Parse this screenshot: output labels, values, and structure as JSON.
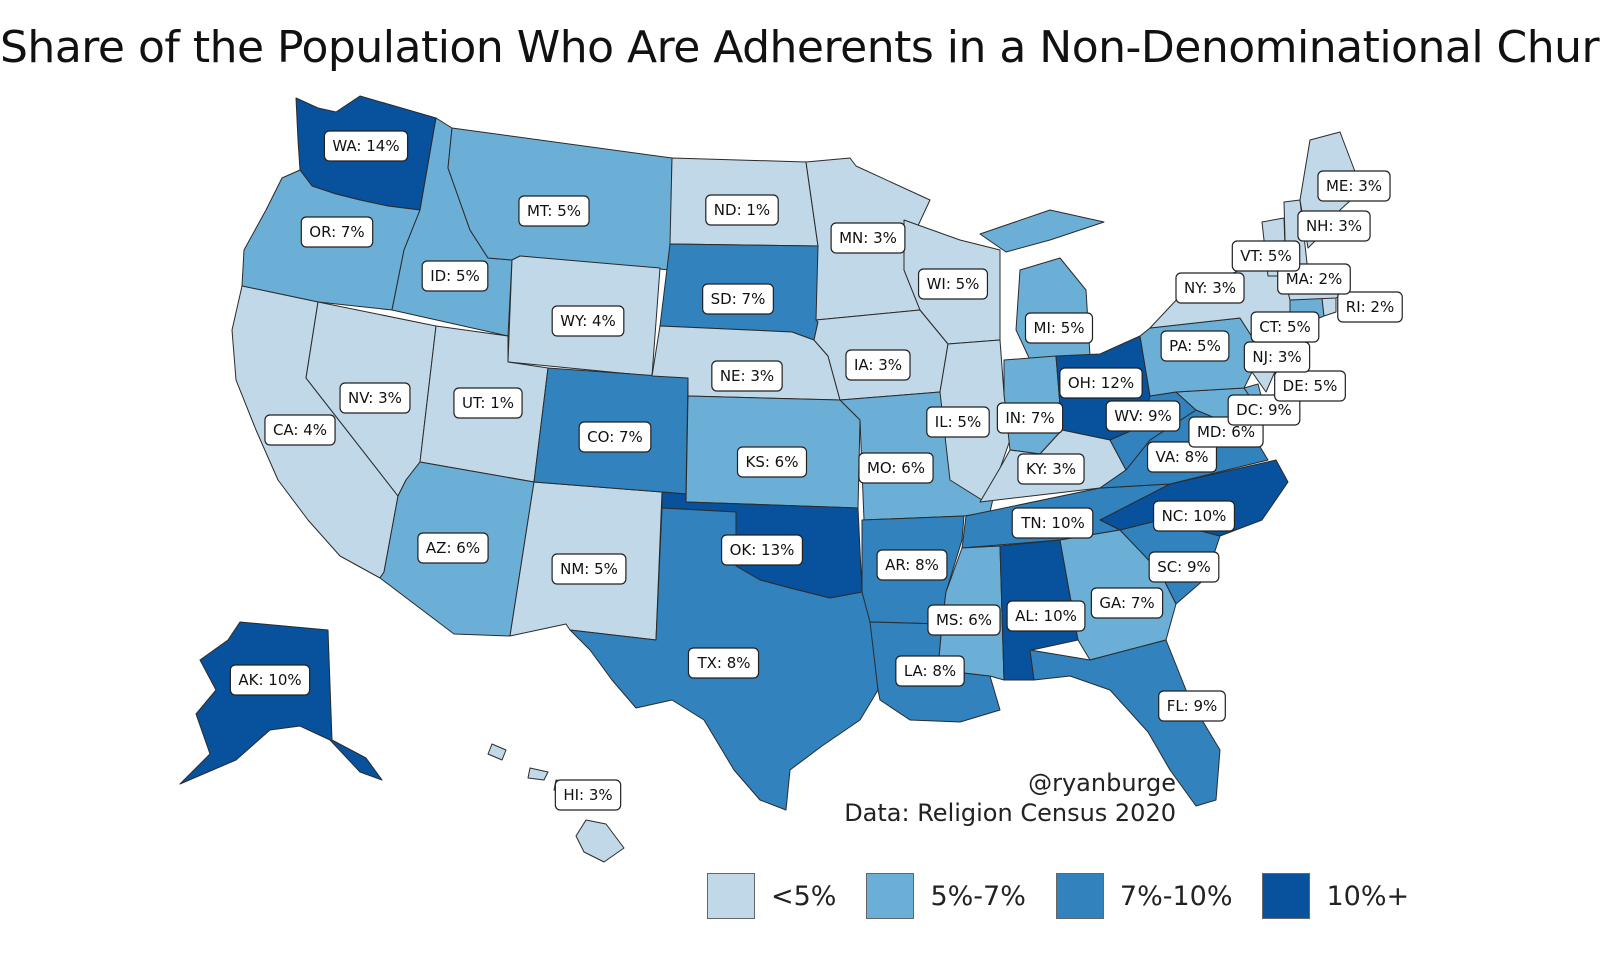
{
  "title": "Share of the Population Who Are Adherents in a Non-Denominational Church",
  "credit": {
    "handle": "@ryanburge",
    "source": "Data: Religion Census 2020"
  },
  "classes": {
    "c1": "#c0d8e8",
    "c2": "#6baed6",
    "c3": "#3182bd",
    "c4": "#08519c"
  },
  "legend": [
    {
      "label": "<5%",
      "color": "#c0d8e8"
    },
    {
      "label": "5%-7%",
      "color": "#6baed6"
    },
    {
      "label": "7%-10%",
      "color": "#3182bd"
    },
    {
      "label": "10%+",
      "color": "#08519c"
    }
  ],
  "states": [
    {
      "id": "WA",
      "label": "WA: 14%",
      "cls": "c4"
    },
    {
      "id": "OR",
      "label": "OR: 7%",
      "cls": "c2"
    },
    {
      "id": "CA",
      "label": "CA: 4%",
      "cls": "c1"
    },
    {
      "id": "NV",
      "label": "NV: 3%",
      "cls": "c1"
    },
    {
      "id": "ID",
      "label": "ID: 5%",
      "cls": "c2"
    },
    {
      "id": "MT",
      "label": "MT: 5%",
      "cls": "c2"
    },
    {
      "id": "WY",
      "label": "WY: 4%",
      "cls": "c1"
    },
    {
      "id": "UT",
      "label": "UT: 1%",
      "cls": "c1"
    },
    {
      "id": "AZ",
      "label": "AZ: 6%",
      "cls": "c2"
    },
    {
      "id": "NM",
      "label": "NM: 5%",
      "cls": "c1"
    },
    {
      "id": "CO",
      "label": "CO: 7%",
      "cls": "c3"
    },
    {
      "id": "ND",
      "label": "ND: 1%",
      "cls": "c1"
    },
    {
      "id": "SD",
      "label": "SD: 7%",
      "cls": "c3"
    },
    {
      "id": "NE",
      "label": "NE: 3%",
      "cls": "c1"
    },
    {
      "id": "KS",
      "label": "KS: 6%",
      "cls": "c2"
    },
    {
      "id": "OK",
      "label": "OK: 13%",
      "cls": "c4"
    },
    {
      "id": "TX",
      "label": "TX: 8%",
      "cls": "c3"
    },
    {
      "id": "MN",
      "label": "MN: 3%",
      "cls": "c1"
    },
    {
      "id": "IA",
      "label": "IA: 3%",
      "cls": "c1"
    },
    {
      "id": "MO",
      "label": "MO: 6%",
      "cls": "c2"
    },
    {
      "id": "AR",
      "label": "AR: 8%",
      "cls": "c3"
    },
    {
      "id": "LA",
      "label": "LA: 8%",
      "cls": "c3"
    },
    {
      "id": "WI",
      "label": "WI: 5%",
      "cls": "c1"
    },
    {
      "id": "IL",
      "label": "IL: 5%",
      "cls": "c1"
    },
    {
      "id": "MI",
      "label": "MI: 5%",
      "cls": "c2"
    },
    {
      "id": "IN",
      "label": "IN: 7%",
      "cls": "c2"
    },
    {
      "id": "OH",
      "label": "OH: 12%",
      "cls": "c4"
    },
    {
      "id": "KY",
      "label": "KY: 3%",
      "cls": "c1"
    },
    {
      "id": "TN",
      "label": "TN: 10%",
      "cls": "c3"
    },
    {
      "id": "MS",
      "label": "MS: 6%",
      "cls": "c2"
    },
    {
      "id": "AL",
      "label": "AL: 10%",
      "cls": "c4"
    },
    {
      "id": "GA",
      "label": "GA: 7%",
      "cls": "c2"
    },
    {
      "id": "FL",
      "label": "FL: 9%",
      "cls": "c3"
    },
    {
      "id": "SC",
      "label": "SC: 9%",
      "cls": "c3"
    },
    {
      "id": "NC",
      "label": "NC: 10%",
      "cls": "c4"
    },
    {
      "id": "VA",
      "label": "VA: 8%",
      "cls": "c3"
    },
    {
      "id": "WV",
      "label": "WV: 9%",
      "cls": "c3"
    },
    {
      "id": "MD",
      "label": "MD: 6%",
      "cls": "c2"
    },
    {
      "id": "DC",
      "label": "DC: 9%",
      "cls": "c3"
    },
    {
      "id": "DE",
      "label": "DE: 5%",
      "cls": "c2"
    },
    {
      "id": "PA",
      "label": "PA: 5%",
      "cls": "c2"
    },
    {
      "id": "NJ",
      "label": "NJ: 3%",
      "cls": "c1"
    },
    {
      "id": "NY",
      "label": "NY: 3%",
      "cls": "c1"
    },
    {
      "id": "CT",
      "label": "CT: 5%",
      "cls": "c2"
    },
    {
      "id": "RI",
      "label": "RI: 2%",
      "cls": "c1"
    },
    {
      "id": "MA",
      "label": "MA: 2%",
      "cls": "c1"
    },
    {
      "id": "VT",
      "label": "VT: 5%",
      "cls": "c1"
    },
    {
      "id": "NH",
      "label": "NH: 3%",
      "cls": "c1"
    },
    {
      "id": "ME",
      "label": "ME: 3%",
      "cls": "c1"
    },
    {
      "id": "AK",
      "label": "AK: 10%",
      "cls": "c4"
    },
    {
      "id": "HI",
      "label": "HI: 3%",
      "cls": "c1"
    }
  ]
}
